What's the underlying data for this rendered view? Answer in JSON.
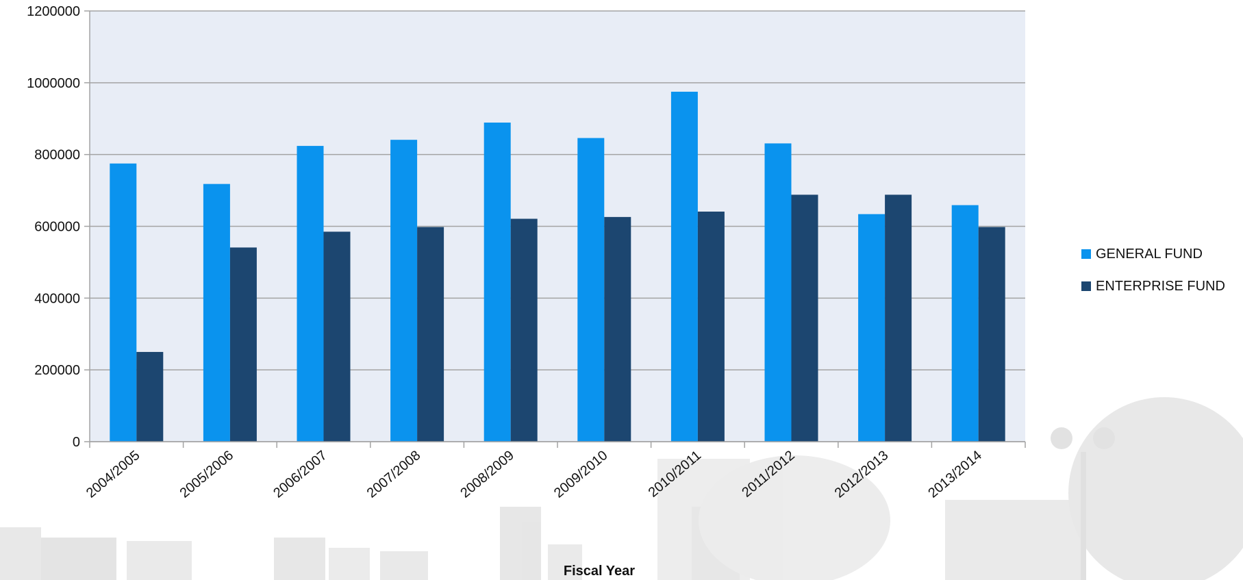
{
  "chart_data": {
    "type": "bar",
    "title": "",
    "xlabel": "Fiscal Year",
    "ylabel": "",
    "ylim": [
      0,
      1200000
    ],
    "yticks": [
      0,
      200000,
      400000,
      600000,
      800000,
      1000000,
      1200000
    ],
    "grid": true,
    "legend_position": "right",
    "categories": [
      "2004/2005",
      "2005/2006",
      "2006/2007",
      "2007/2008",
      "2008/2009",
      "2009/2010",
      "2010/2011",
      "2011/2012",
      "2012/2013",
      "2013/2014"
    ],
    "series": [
      {
        "name": "GENERAL FUND",
        "color": "#0a93ee",
        "values": [
          775000,
          718000,
          824000,
          841000,
          889000,
          846000,
          975000,
          831000,
          634000,
          659000
        ]
      },
      {
        "name": "ENTERPRISE FUND",
        "color": "#1c4670",
        "values": [
          250000,
          541000,
          585000,
          598000,
          621000,
          626000,
          641000,
          688000,
          688000,
          598000
        ]
      }
    ]
  },
  "colors": {
    "plot_background": "#e8edf6",
    "gridline": "#a3a3a3",
    "watermark": "#d9d9d9"
  }
}
